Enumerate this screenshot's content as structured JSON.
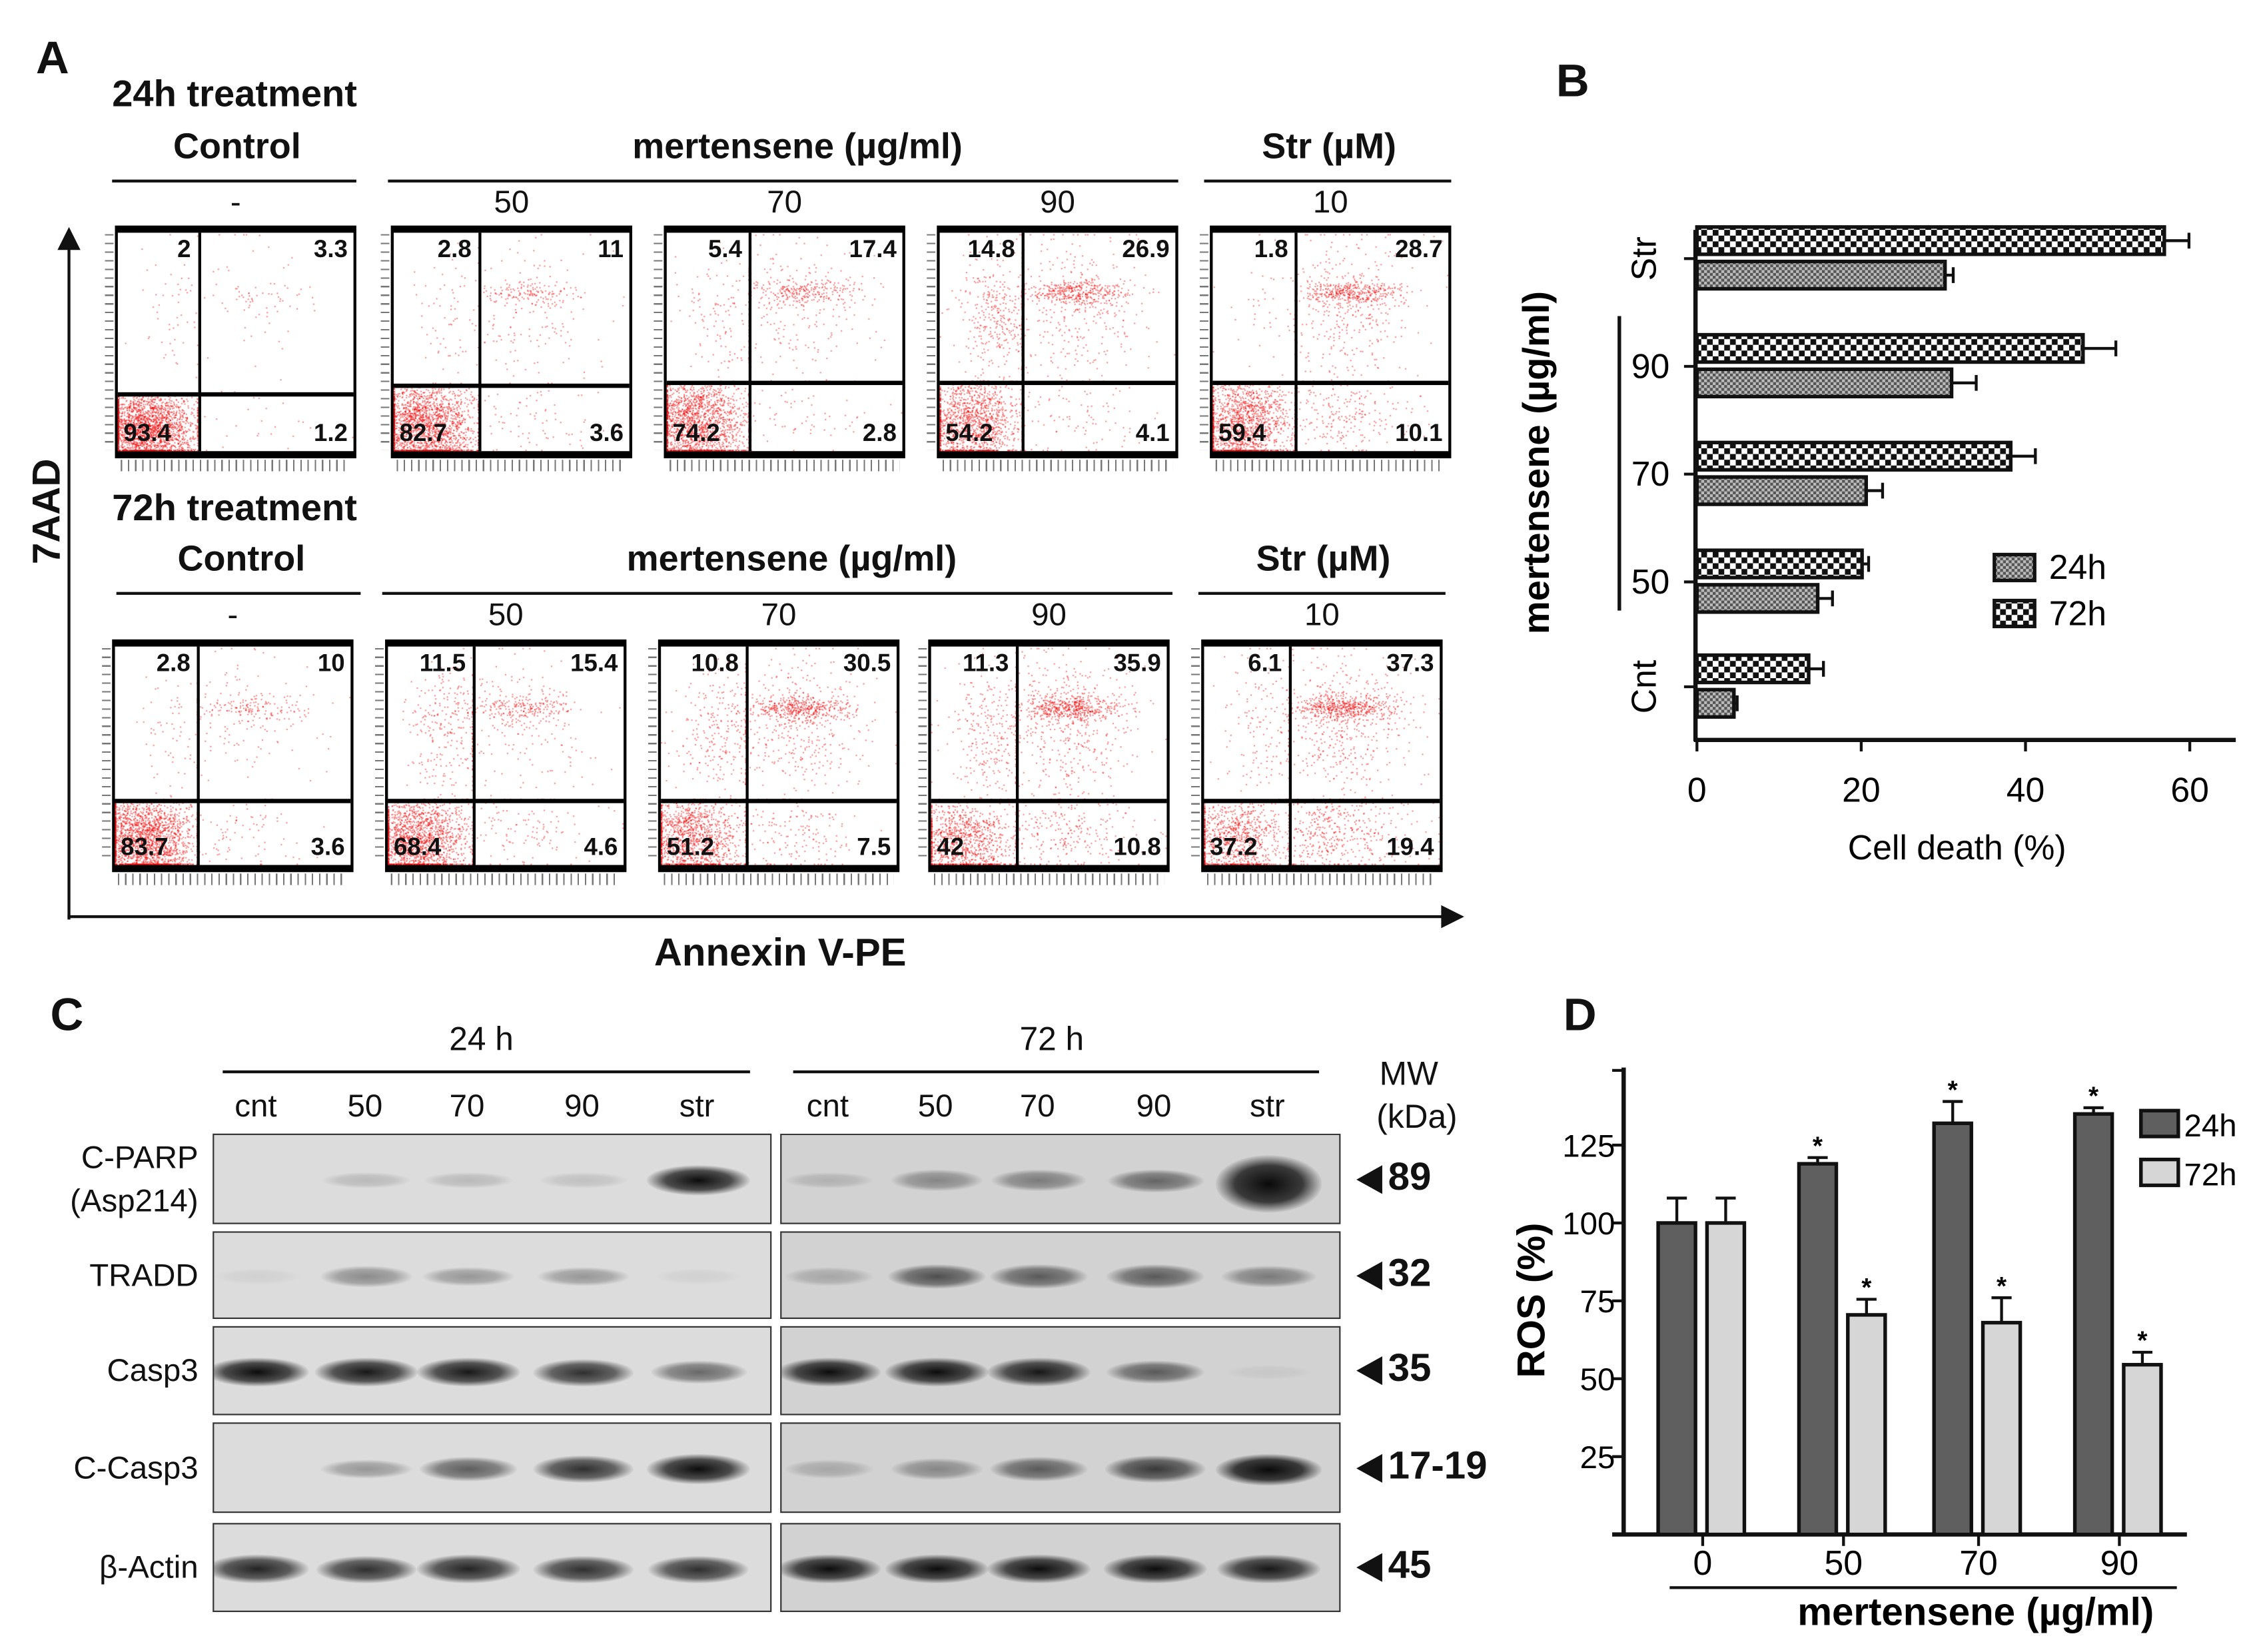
{
  "panels": {
    "a": "A",
    "b": "B",
    "c": "C",
    "d": "D"
  },
  "flow": {
    "y_axis_label": "7AAD",
    "x_axis_label": "Annexin V-PE",
    "rows": [
      {
        "title": "24h treatment",
        "groups": [
          {
            "label": "Control",
            "doses": [
              "-"
            ]
          },
          {
            "label": "mertensene (µg/ml)",
            "doses": [
              "50",
              "70",
              "90"
            ]
          },
          {
            "label": "Str (µM)",
            "doses": [
              "10"
            ]
          }
        ],
        "plots": [
          {
            "ul": "2",
            "ur": "3.3",
            "ll": "93.4",
            "lr": "1.2"
          },
          {
            "ul": "2.8",
            "ur": "11",
            "ll": "82.7",
            "lr": "3.6"
          },
          {
            "ul": "5.4",
            "ur": "17.4",
            "ll": "74.2",
            "lr": "2.8"
          },
          {
            "ul": "14.8",
            "ur": "26.9",
            "ll": "54.2",
            "lr": "4.1"
          },
          {
            "ul": "1.8",
            "ur": "28.7",
            "ll": "59.4",
            "lr": "10.1"
          }
        ]
      },
      {
        "title": "72h treatment",
        "groups": [
          {
            "label": "Control",
            "doses": [
              "-"
            ]
          },
          {
            "label": "mertensene (µg/ml)",
            "doses": [
              "50",
              "70",
              "90"
            ]
          },
          {
            "label": "Str (µM)",
            "doses": [
              "10"
            ]
          }
        ],
        "plots": [
          {
            "ul": "2.8",
            "ur": "10",
            "ll": "83.7",
            "lr": "3.6"
          },
          {
            "ul": "11.5",
            "ur": "15.4",
            "ll": "68.4",
            "lr": "4.6"
          },
          {
            "ul": "10.8",
            "ur": "30.5",
            "ll": "51.2",
            "lr": "7.5"
          },
          {
            "ul": "11.3",
            "ur": "35.9",
            "ll": "42",
            "lr": "10.8"
          },
          {
            "ul": "6.1",
            "ur": "37.3",
            "ll": "37.2",
            "lr": "19.4"
          }
        ]
      }
    ]
  },
  "western": {
    "timepoints": [
      "24 h",
      "72 h"
    ],
    "lanes": [
      "cnt",
      "50",
      "70",
      "90",
      "str"
    ],
    "mw_label": [
      "MW",
      "(kDa)"
    ],
    "rows": [
      {
        "label": [
          "C-PARP",
          "(Asp214)"
        ],
        "mw": "89",
        "i24": [
          0.0,
          0.15,
          0.15,
          0.12,
          0.9
        ],
        "i72": [
          0.15,
          0.35,
          0.4,
          0.5,
          1.0
        ]
      },
      {
        "label": [
          "TRADD"
        ],
        "mw": "32",
        "i24": [
          0.05,
          0.35,
          0.3,
          0.3,
          0.05
        ],
        "i72": [
          0.2,
          0.6,
          0.55,
          0.55,
          0.4
        ]
      },
      {
        "label": [
          "Casp3"
        ],
        "mw": "35",
        "i24": [
          0.9,
          0.85,
          0.85,
          0.75,
          0.5
        ],
        "i72": [
          0.9,
          0.9,
          0.85,
          0.55,
          0.05
        ]
      },
      {
        "label": [
          "C-Casp3"
        ],
        "mw": "17-19",
        "i24": [
          0.0,
          0.3,
          0.55,
          0.75,
          0.9
        ],
        "i72": [
          0.2,
          0.35,
          0.55,
          0.7,
          1.0
        ]
      },
      {
        "label": [
          "β-Actin"
        ],
        "mw": "45",
        "i24": [
          0.8,
          0.75,
          0.8,
          0.75,
          0.75
        ],
        "i72": [
          0.9,
          0.9,
          0.9,
          0.9,
          0.85
        ]
      }
    ]
  },
  "chart_data": [
    {
      "id": "B",
      "type": "bar",
      "orientation": "horizontal",
      "categories": [
        "Cnt",
        "50",
        "70",
        "90",
        "Str"
      ],
      "series": [
        {
          "name": "24h",
          "values": [
            4.5,
            14.7,
            20.6,
            31,
            30.2
          ],
          "errors": [
            0.4,
            1.8,
            2,
            3,
            1
          ]
        },
        {
          "name": "72h",
          "values": [
            13.6,
            20.1,
            38.2,
            47,
            56.9
          ],
          "errors": [
            1.8,
            0.8,
            3,
            4,
            3
          ]
        }
      ],
      "xlabel": "Cell death (%)",
      "ylabel": "mertensene (µg/ml)",
      "xlim": [
        0,
        65
      ],
      "xticks": [
        "0",
        "20",
        "40",
        "60"
      ],
      "legend": "center-right",
      "grid": false
    },
    {
      "id": "D",
      "type": "bar",
      "categories": [
        "0",
        "50",
        "70",
        "90"
      ],
      "series": [
        {
          "name": "24h",
          "values": [
            100,
            119,
            132,
            135
          ],
          "errors": [
            8,
            2,
            7,
            2
          ],
          "significant": [
            false,
            true,
            true,
            true
          ],
          "color": "#5f5f5f"
        },
        {
          "name": "72h",
          "values": [
            100,
            70.5,
            68,
            54.5
          ],
          "errors": [
            8,
            5,
            8,
            4
          ],
          "significant": [
            false,
            true,
            true,
            true
          ],
          "color": "#d6d6d6"
        }
      ],
      "significance_mark": "*",
      "xlabel": "mertensene (µg/ml)",
      "ylabel": "ROS (%)",
      "ylim": [
        0,
        150
      ],
      "yticks": [
        "25",
        "50",
        "75",
        "100",
        "125"
      ],
      "legend": "top-right",
      "grid": false
    }
  ]
}
